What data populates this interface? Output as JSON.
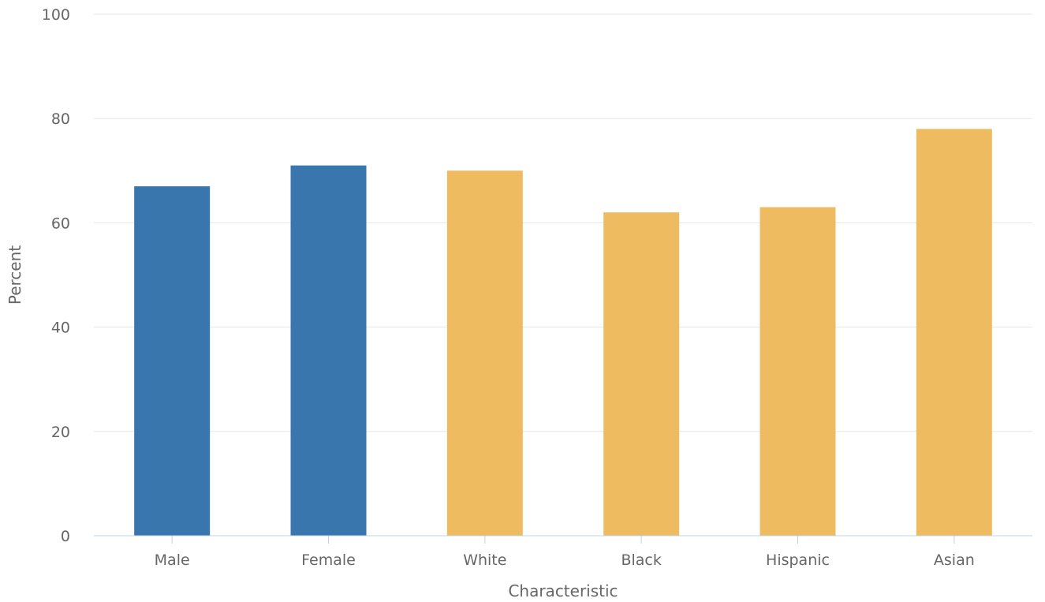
{
  "chart_data": {
    "type": "bar",
    "xlabel": "Characteristic",
    "ylabel": "Percent",
    "ylim": [
      0,
      100
    ],
    "yticks": [
      0,
      20,
      40,
      60,
      80,
      100
    ],
    "grid": true,
    "categories": [
      "Male",
      "Female",
      "White",
      "Black",
      "Hispanic",
      "Asian"
    ],
    "values": [
      67,
      71,
      70,
      62,
      63,
      78
    ],
    "bar_colors": [
      "#3a76ae",
      "#3a76ae",
      "#efbb61",
      "#efbb61",
      "#efbb61",
      "#efbb61"
    ]
  }
}
